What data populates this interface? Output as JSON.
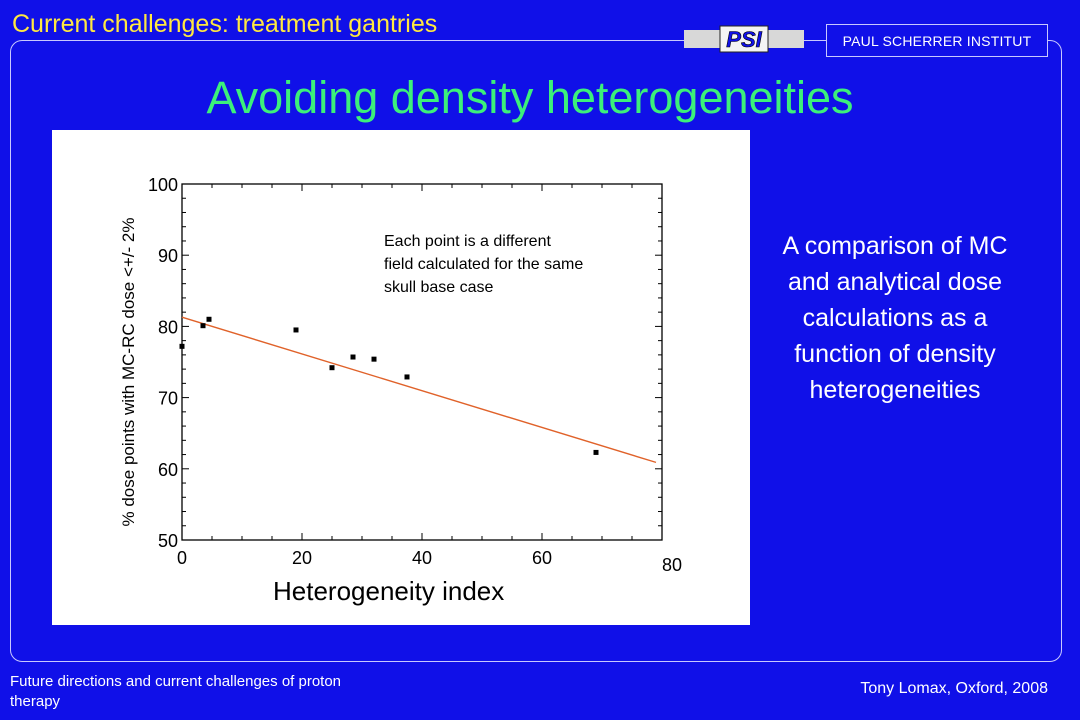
{
  "header": {
    "section_title": "Current challenges: treatment gantries",
    "institute": "PAUL SCHERRER INSTITUT",
    "logo_text": "PSI"
  },
  "slide": {
    "title": "Avoiding density heterogeneities",
    "side_text": "A comparison of MC and analytical dose calculations as a function of density heterogeneities"
  },
  "footer": {
    "left": "Future directions and current challenges of proton therapy",
    "right": "Tony Lomax, Oxford, 2008"
  },
  "chart_data": {
    "type": "scatter",
    "title": "",
    "xlabel": "Heterogeneity index",
    "ylabel": "% dose points with MC-RC dose <+/- 2%",
    "xlim": [
      0,
      80
    ],
    "ylim": [
      50,
      100
    ],
    "x_ticks": [
      0,
      20,
      40,
      60,
      80
    ],
    "y_ticks": [
      50,
      60,
      70,
      80,
      90,
      100
    ],
    "annotation": "Each point is a different field calculated for the same skull base case",
    "grid": false,
    "points": [
      {
        "x": 0,
        "y": 77.2
      },
      {
        "x": 3.5,
        "y": 80.1
      },
      {
        "x": 4.5,
        "y": 81.0
      },
      {
        "x": 19,
        "y": 79.5
      },
      {
        "x": 25,
        "y": 74.2
      },
      {
        "x": 28.5,
        "y": 75.7
      },
      {
        "x": 32,
        "y": 75.4
      },
      {
        "x": 37.5,
        "y": 72.9
      },
      {
        "x": 69,
        "y": 62.3
      }
    ],
    "fit_line": {
      "x": [
        0,
        79
      ],
      "y": [
        81.3,
        60.9
      ]
    },
    "colors": {
      "points": "#000000",
      "fit_line": "#e0622a",
      "background": "#1010e8"
    }
  }
}
